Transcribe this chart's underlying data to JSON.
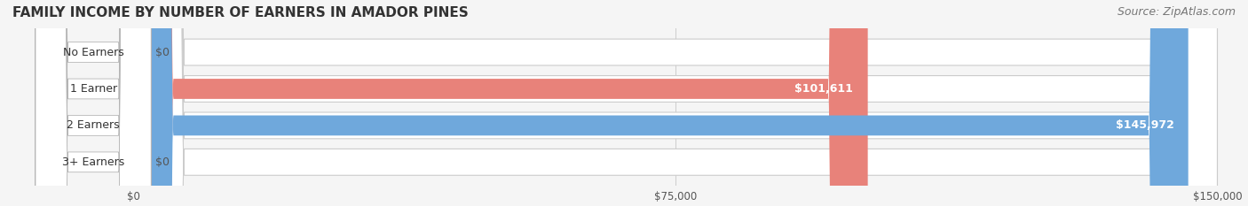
{
  "title": "FAMILY INCOME BY NUMBER OF EARNERS IN AMADOR PINES",
  "source": "Source: ZipAtlas.com",
  "categories": [
    "No Earners",
    "1 Earner",
    "2 Earners",
    "3+ Earners"
  ],
  "values": [
    0,
    101611,
    145972,
    0
  ],
  "max_value": 150000,
  "bar_colors": [
    "#f0c89a",
    "#e8827a",
    "#6fa8dc",
    "#b4a0c8"
  ],
  "label_bg_colors": [
    "#f0c89a",
    "#e8827a",
    "#6fa8dc",
    "#b4a0c8"
  ],
  "bar_track_color": "#f0f0f0",
  "bar_track_edge_color": "#d8d8d8",
  "value_labels": [
    "$0",
    "$101,611",
    "$145,972",
    "$0"
  ],
  "x_ticks": [
    0,
    75000,
    150000
  ],
  "x_tick_labels": [
    "$0",
    "$75,000",
    "$150,000"
  ],
  "title_fontsize": 11,
  "source_fontsize": 9,
  "label_fontsize": 9,
  "value_fontsize": 9,
  "background_color": "#f5f5f5"
}
